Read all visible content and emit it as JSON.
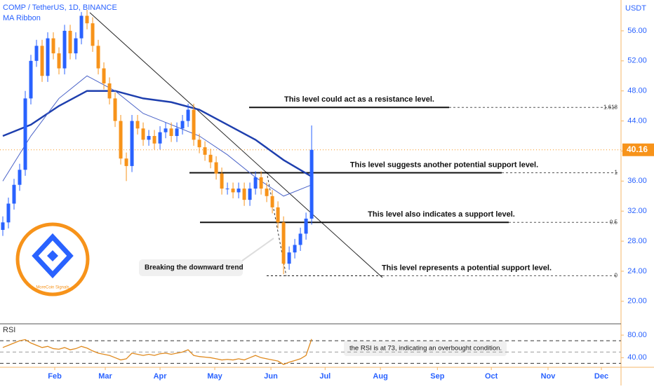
{
  "chart_data": {
    "type": "candlestick",
    "title": "COMP / TetherUS, 1D, BINANCE",
    "subtitle": "MA Ribbon",
    "y_unit": "USDT",
    "up_color": "#2962ff",
    "down_color": "#f7931a",
    "ohlc": {
      "open": [
        29.5,
        30.5,
        33,
        35.5,
        37.5,
        47,
        52,
        54,
        50,
        55,
        53,
        51,
        56,
        53,
        55,
        58,
        57,
        54,
        51,
        49,
        47,
        44,
        39,
        38,
        44,
        43,
        41.5,
        42,
        41,
        42.5,
        43,
        42,
        43,
        44,
        45.5,
        41.5,
        40.5,
        39.5,
        38.5,
        37,
        35,
        35,
        34.5,
        35,
        33.5,
        35,
        36.5,
        35,
        34,
        32.5,
        30.5,
        25,
        26.5,
        27.5,
        29,
        31
      ],
      "high": [
        31.3,
        33.8,
        36.3,
        38.3,
        48,
        52.8,
        54.8,
        54.8,
        55.8,
        55.8,
        53.8,
        56.8,
        56.8,
        55.8,
        58.5,
        58.8,
        57.8,
        54.8,
        51.8,
        49.8,
        47.8,
        44.8,
        39.8,
        44.8,
        44.8,
        43.8,
        42.8,
        42.8,
        43.3,
        43.8,
        43.8,
        43.8,
        44.8,
        46.3,
        46.3,
        42.3,
        41.3,
        40.3,
        39.3,
        37.8,
        35.8,
        35.8,
        35.8,
        35.8,
        35.8,
        37.3,
        37.3,
        35.8,
        34.8,
        33.3,
        31.3,
        27.3,
        28.3,
        29.8,
        31.8,
        43.4
      ],
      "low": [
        28.7,
        29.7,
        32.2,
        34.7,
        36.7,
        46.2,
        51.2,
        49.2,
        49.2,
        52.2,
        50.2,
        50.2,
        52.2,
        52.2,
        54.2,
        56.2,
        53.2,
        50.2,
        48.2,
        46.2,
        43.2,
        38.2,
        36,
        37.2,
        42.2,
        40.7,
        40.7,
        40.2,
        40.2,
        41.7,
        41.2,
        41.2,
        42.2,
        43.2,
        40.7,
        39.7,
        38.7,
        37.7,
        36.2,
        34.2,
        34.2,
        33.7,
        33.7,
        32.7,
        32.7,
        34.2,
        34.2,
        33.2,
        31.7,
        29.7,
        23.6,
        24.2,
        25.7,
        26.7,
        28.2,
        30.2
      ],
      "close": [
        30.5,
        33,
        35.5,
        37.5,
        47,
        52,
        54,
        50,
        55,
        53,
        51,
        56,
        53,
        55,
        58,
        57,
        54,
        51,
        49,
        47,
        44,
        39,
        38,
        44,
        43,
        41.5,
        42,
        41,
        42.5,
        43,
        42,
        43,
        44,
        45.5,
        41.5,
        40.5,
        39.5,
        38.5,
        37,
        35,
        35,
        34.5,
        35,
        33.5,
        35,
        36.5,
        35,
        34,
        32.5,
        30.5,
        25,
        26.5,
        27.5,
        29,
        31,
        40.16
      ]
    },
    "ma": [
      {
        "color": "#1e3fae",
        "x": [
          0,
          5,
          10,
          15,
          20,
          25,
          30,
          35,
          40,
          45,
          50,
          55
        ],
        "values": [
          42,
          43.5,
          46,
          48,
          48,
          47,
          46.5,
          45.5,
          43.5,
          41.5,
          38.8,
          36.6
        ]
      },
      {
        "color": "#4a63c8",
        "x": [
          0,
          5,
          10,
          15,
          20,
          25,
          30,
          35,
          40,
          45,
          50,
          55
        ],
        "values": [
          36,
          42,
          47,
          50,
          48,
          45,
          43.5,
          42,
          39.5,
          36.5,
          34,
          35.5
        ]
      }
    ],
    "last_price": 40.16,
    "xlim": [
      -0.5,
      110.1
    ],
    "xticks": [
      {
        "value": 9.25,
        "label": "Feb"
      },
      {
        "value": 18.25,
        "label": "Mar"
      },
      {
        "value": 28,
        "label": "Apr"
      },
      {
        "value": 37.75,
        "label": "May"
      },
      {
        "value": 47.75,
        "label": "Jun"
      },
      {
        "value": 57.4,
        "label": "Jul"
      },
      {
        "value": 67.25,
        "label": "Aug"
      },
      {
        "value": 77.4,
        "label": "Sep"
      },
      {
        "value": 87,
        "label": "Oct"
      },
      {
        "value": 97.1,
        "label": "Nov"
      },
      {
        "value": 106.6,
        "label": "Dec"
      }
    ],
    "ylim": [
      17.0,
      60.1
    ],
    "yticks": [
      {
        "value": 20,
        "label": "20.00"
      },
      {
        "value": 24,
        "label": "24.00"
      },
      {
        "value": 28,
        "label": "28.00"
      },
      {
        "value": 32,
        "label": "32.00"
      },
      {
        "value": 36,
        "label": "36.00"
      },
      {
        "value": 40,
        "label": "40.00"
      },
      {
        "value": 44,
        "label": "44.00"
      },
      {
        "value": 48,
        "label": "48.00"
      },
      {
        "value": 52,
        "label": "52.00"
      },
      {
        "value": 56,
        "label": "56.00"
      }
    ],
    "levels": [
      {
        "value": 45.8,
        "label": "1.618",
        "note": "This level could act as a resistance level."
      },
      {
        "value": 37.1,
        "label": "1",
        "note": "This level suggests another potential support level."
      },
      {
        "value": 30.5,
        "label": "0.5",
        "note": "This level also indicates a support level."
      },
      {
        "value": 23.4,
        "label": "0",
        "note": "This level represents a potential support level."
      }
    ],
    "trend_note": "Breaking the downward trend",
    "logo_text": "MoreCoin Signals",
    "rsi": {
      "title": "RSI",
      "color": "#e08a1e",
      "ylim": [
        23,
        100
      ],
      "yticks": [
        {
          "value": 80,
          "label": "80.00"
        },
        {
          "value": 40,
          "label": "40.00"
        }
      ],
      "bands": [
        70,
        50,
        30
      ],
      "values": [
        58,
        62,
        66,
        70,
        72,
        66,
        62,
        58,
        60,
        56,
        55,
        58,
        54,
        56,
        60,
        57,
        52,
        48,
        46,
        44,
        40,
        36,
        38,
        48,
        46,
        44,
        46,
        44,
        47,
        48,
        46,
        48,
        50,
        54,
        44,
        42,
        41,
        40,
        38,
        36,
        37,
        36,
        38,
        36,
        40,
        44,
        40,
        38,
        36,
        34,
        28,
        32,
        35,
        38,
        44,
        73
      ],
      "note": "the RSI is at 73, indicating an overbought condition."
    }
  }
}
